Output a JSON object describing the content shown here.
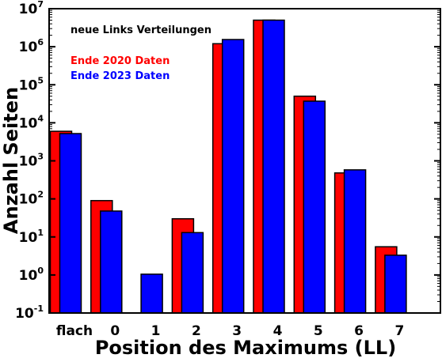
{
  "chart_data": {
    "type": "bar",
    "subtitle": "neue Links Verteilungen",
    "xlabel": "Position des Maximums (LL)",
    "ylabel": "Anzahl Seiten",
    "categories": [
      "flach",
      "0",
      "1",
      "2",
      "3",
      "4",
      "5",
      "6",
      "7"
    ],
    "series": [
      {
        "name": "Ende 2020 Daten",
        "color": "#ff0000",
        "values": [
          6000,
          90,
          null,
          30,
          1200000,
          5000000,
          50000,
          480,
          5.5
        ]
      },
      {
        "name": "Ende 2023 Daten",
        "color": "#0000ff",
        "values": [
          5200,
          48,
          1.05,
          13,
          1550000,
          5000000,
          37000,
          580,
          3.3
        ]
      }
    ],
    "yscale": "log",
    "ylim": [
      0.1,
      10000000
    ],
    "y_ticks": [
      {
        "base": "10",
        "exp": "-1"
      },
      {
        "base": "10",
        "exp": "0"
      },
      {
        "base": "10",
        "exp": "1"
      },
      {
        "base": "10",
        "exp": "2"
      },
      {
        "base": "10",
        "exp": "3"
      },
      {
        "base": "10",
        "exp": "4"
      },
      {
        "base": "10",
        "exp": "5"
      },
      {
        "base": "10",
        "exp": "6"
      },
      {
        "base": "10",
        "exp": "7"
      }
    ],
    "grid": false,
    "legend_position": "top-left",
    "subtitle_color": "#888888"
  }
}
